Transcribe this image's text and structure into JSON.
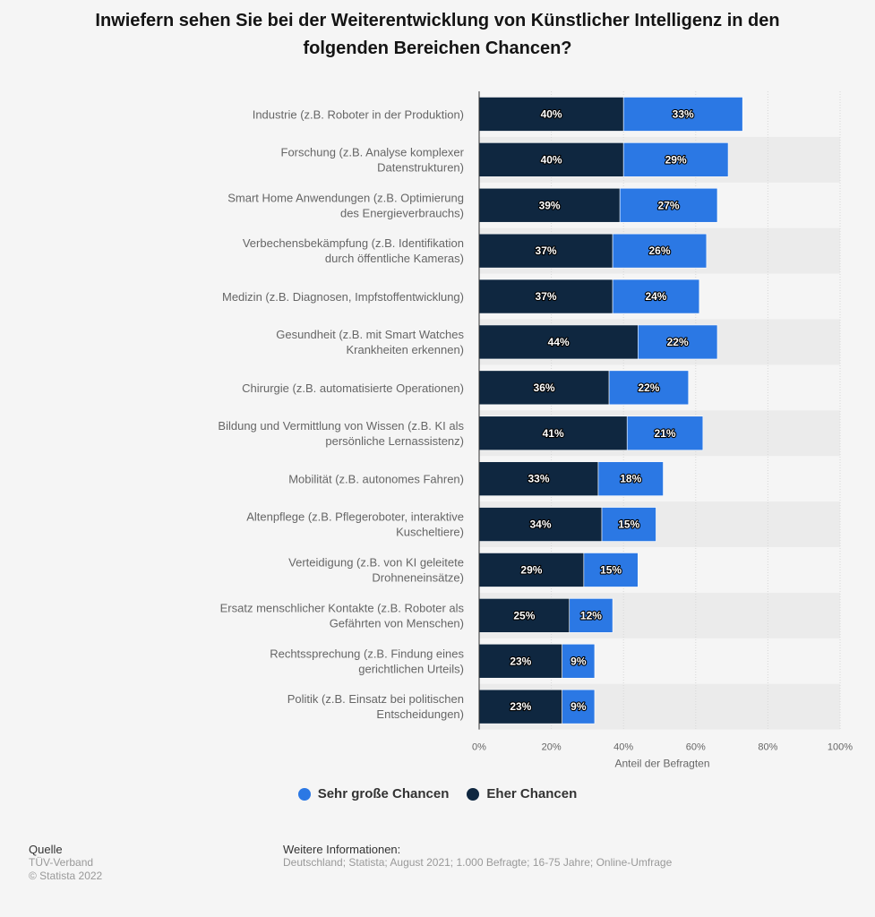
{
  "title_line1": "Inwiefern sehen Sie bei der Weiterentwicklung von Künstlicher Intelligenz in den",
  "title_line2": "folgenden Bereichen Chancen?",
  "colors": {
    "dark": "#0f2740",
    "light": "#2b78e4",
    "band": "#ebebeb",
    "grid": "#d8d8d8"
  },
  "chart_data": {
    "type": "bar",
    "orientation": "horizontal",
    "stacked": true,
    "categories": [
      [
        "Industrie (z.B. Roboter in der Produktion)"
      ],
      [
        "Forschung (z.B. Analyse komplexer",
        "Datenstrukturen)"
      ],
      [
        "Smart Home Anwendungen (z.B. Optimierung",
        "des Energieverbrauchs)"
      ],
      [
        "Verbechensbekämpfung (z.B. Identifikation",
        "durch öffentliche Kameras)"
      ],
      [
        "Medizin (z.B. Diagnosen, Impfstoffentwicklung)"
      ],
      [
        "Gesundheit (z.B. mit Smart Watches",
        "Krankheiten erkennen)"
      ],
      [
        "Chirurgie (z.B. automatisierte Operationen)"
      ],
      [
        "Bildung und Vermittlung von Wissen (z.B. KI als",
        "persönliche Lernassistenz)"
      ],
      [
        "Mobilität (z.B. autonomes Fahren)"
      ],
      [
        "Altenpflege (z.B. Pflegeroboter, interaktive",
        "Kuscheltiere)"
      ],
      [
        "Verteidigung (z.B. von KI geleitete",
        "Drohneneinsätze)"
      ],
      [
        "Ersatz menschlicher Kontakte (z.B. Roboter als",
        "Gefährten von Menschen)"
      ],
      [
        "Rechtssprechung (z.B. Findung eines",
        "gerichtlichen Urteils)"
      ],
      [
        "Politik (z.B. Einsatz bei politischen",
        "Entscheidungen)"
      ]
    ],
    "series": [
      {
        "name": "Eher Chancen",
        "color": "#0f2740",
        "values": [
          40,
          40,
          39,
          37,
          37,
          44,
          36,
          41,
          33,
          34,
          29,
          25,
          23,
          23
        ]
      },
      {
        "name": "Sehr große Chancen",
        "color": "#2b78e4",
        "values": [
          33,
          29,
          27,
          26,
          24,
          22,
          22,
          21,
          18,
          15,
          15,
          12,
          9,
          9
        ]
      }
    ],
    "xlabel": "Anteil der Befragten",
    "xlim": [
      0,
      100
    ],
    "xticks": [
      "0%",
      "20%",
      "40%",
      "60%",
      "80%",
      "100%"
    ],
    "grid": true,
    "legend": [
      {
        "name": "Sehr große Chancen",
        "color": "#2b78e4"
      },
      {
        "name": "Eher Chancen",
        "color": "#0f2740"
      }
    ],
    "legend_position": "bottom"
  },
  "source": {
    "header": "Quelle",
    "lines": [
      "TÜV-Verband",
      "© Statista 2022"
    ]
  },
  "info": {
    "header": "Weitere Informationen:",
    "text": "Deutschland; Statista; August 2021; 1.000 Befragte; 16-75 Jahre; Online-Umfrage"
  }
}
